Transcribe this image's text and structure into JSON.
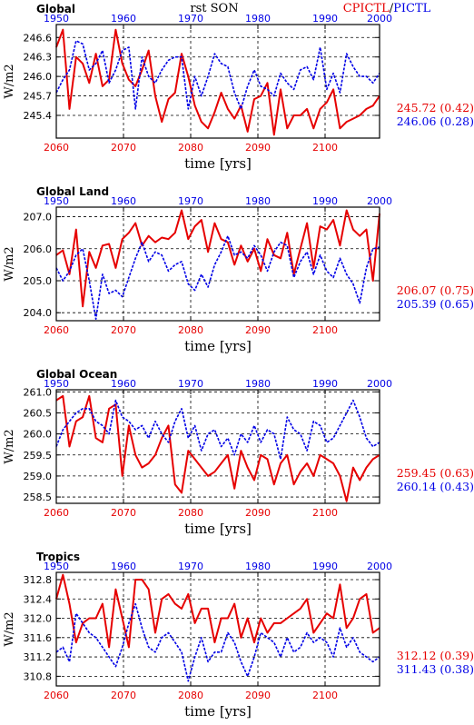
{
  "figure": {
    "center_title": "rst SON",
    "legend_red": "CPICTL",
    "legend_sep": "/",
    "legend_blue": "PICTL",
    "colors": {
      "red": "#e60000",
      "blue": "#0000e6",
      "grid": "#000000"
    }
  },
  "chart_data": [
    {
      "type": "line",
      "title": "Global",
      "ylabel": "W/m2",
      "xlabel": "time [yrs]",
      "x_bottom_ticks": [
        "2060",
        "2070",
        "2080",
        "2090",
        "2100"
      ],
      "x_top_ticks": [
        "1950",
        "1960",
        "1970",
        "1980",
        "1990",
        "2000"
      ],
      "xlim": [
        2060,
        2109
      ],
      "ylim": [
        245.05,
        246.8
      ],
      "y_ticks": [
        "246.6",
        "246.3",
        "246.0",
        "245.7",
        "245.4"
      ],
      "y_tick_values": [
        246.6,
        246.3,
        246.0,
        245.7,
        245.4
      ],
      "stat_red": "245.72 (0.42)",
      "stat_blue": "246.06 (0.28)",
      "series": [
        {
          "name": "CPICTL",
          "color": "#e60000",
          "values": [
            246.45,
            246.72,
            245.5,
            246.3,
            246.2,
            245.9,
            246.35,
            245.85,
            245.95,
            246.72,
            246.2,
            245.95,
            245.85,
            246.1,
            246.4,
            245.7,
            245.3,
            245.65,
            245.75,
            246.35,
            246.0,
            245.55,
            245.3,
            245.2,
            245.45,
            245.75,
            245.5,
            245.35,
            245.55,
            245.15,
            245.65,
            245.7,
            245.9,
            245.1,
            245.8,
            245.2,
            245.4,
            245.4,
            245.5,
            245.2,
            245.5,
            245.6,
            245.8,
            245.2,
            245.3,
            245.35,
            245.4,
            245.5,
            245.55,
            245.7
          ]
        },
        {
          "name": "PICTL",
          "color": "#0000e6",
          "values": [
            245.75,
            245.95,
            246.1,
            246.55,
            246.5,
            246.1,
            246.2,
            246.4,
            245.9,
            246.1,
            246.4,
            246.45,
            245.5,
            246.3,
            246.0,
            245.9,
            246.1,
            246.25,
            246.3,
            246.3,
            245.5,
            246.0,
            245.7,
            246.0,
            246.35,
            246.2,
            246.15,
            245.75,
            245.5,
            245.85,
            246.1,
            245.85,
            245.8,
            245.7,
            246.05,
            245.9,
            245.8,
            246.1,
            246.15,
            245.95,
            246.45,
            245.8,
            246.05,
            245.75,
            246.35,
            246.15,
            246.0,
            246.0,
            245.9,
            246.05
          ]
        }
      ]
    },
    {
      "type": "line",
      "title": "Global Land",
      "ylabel": "W/m2",
      "xlabel": "time [yrs]",
      "x_bottom_ticks": [
        "2060",
        "2070",
        "2080",
        "2090",
        "2100"
      ],
      "x_top_ticks": [
        "1950",
        "1960",
        "1970",
        "1980",
        "1990",
        "2000"
      ],
      "xlim": [
        2060,
        2109
      ],
      "ylim": [
        203.75,
        207.3
      ],
      "y_ticks": [
        "207.0",
        "206.0",
        "205.0",
        "204.0"
      ],
      "y_tick_values": [
        207.0,
        206.0,
        205.0,
        204.0
      ],
      "stat_red": "206.07 (0.75)",
      "stat_blue": "205.39 (0.65)",
      "series": [
        {
          "name": "CPICTL",
          "color": "#e60000",
          "values": [
            205.8,
            205.95,
            205.2,
            206.6,
            204.2,
            205.9,
            205.4,
            206.1,
            206.15,
            205.4,
            206.3,
            206.5,
            206.8,
            206.1,
            206.4,
            206.2,
            206.35,
            206.3,
            206.5,
            207.2,
            206.3,
            206.7,
            206.9,
            205.9,
            206.8,
            206.3,
            206.2,
            205.5,
            206.1,
            205.6,
            206.0,
            205.3,
            206.3,
            205.8,
            205.7,
            206.5,
            205.2,
            206.0,
            206.8,
            205.4,
            206.7,
            206.6,
            206.9,
            206.1,
            207.2,
            206.6,
            206.4,
            206.6,
            205.0,
            207.1
          ]
        },
        {
          "name": "PICTL",
          "color": "#0000e6",
          "values": [
            205.4,
            205.0,
            205.3,
            205.8,
            206.0,
            205.0,
            203.8,
            205.2,
            204.6,
            204.7,
            204.5,
            205.1,
            205.7,
            206.2,
            205.6,
            205.9,
            205.8,
            205.3,
            205.5,
            205.6,
            204.9,
            204.7,
            205.2,
            204.8,
            205.5,
            205.9,
            206.4,
            205.8,
            205.9,
            205.7,
            206.1,
            205.8,
            205.3,
            205.9,
            206.2,
            206.1,
            205.1,
            205.6,
            205.9,
            205.2,
            205.8,
            205.3,
            205.1,
            205.7,
            205.2,
            204.9,
            204.3,
            205.4,
            206.0,
            206.05
          ]
        }
      ]
    },
    {
      "type": "line",
      "title": "Global Ocean",
      "ylabel": "W/m2",
      "xlabel": "time [yrs]",
      "x_bottom_ticks": [
        "2060",
        "2070",
        "2080",
        "2090",
        "2100"
      ],
      "x_top_ticks": [
        "1950",
        "1960",
        "1970",
        "1980",
        "1990",
        "2000"
      ],
      "xlim": [
        2060,
        2109
      ],
      "ylim": [
        258.35,
        261.05
      ],
      "y_ticks": [
        "261.0",
        "260.5",
        "260.0",
        "259.5",
        "259.0",
        "258.5"
      ],
      "y_tick_values": [
        261.0,
        260.5,
        260.0,
        259.5,
        259.0,
        258.5
      ],
      "stat_red": "259.45 (0.63)",
      "stat_blue": "260.14 (0.43)",
      "series": [
        {
          "name": "CPICTL",
          "color": "#e60000",
          "values": [
            260.8,
            260.9,
            259.7,
            260.3,
            260.4,
            260.9,
            259.9,
            259.8,
            260.6,
            260.7,
            259.0,
            260.2,
            259.5,
            259.2,
            259.3,
            259.5,
            259.9,
            260.2,
            258.8,
            258.6,
            259.6,
            259.4,
            259.2,
            259.0,
            259.1,
            259.3,
            259.5,
            258.7,
            259.6,
            259.2,
            258.9,
            259.5,
            259.4,
            258.8,
            259.3,
            259.5,
            258.8,
            259.1,
            259.3,
            259.0,
            259.5,
            259.4,
            259.3,
            259.0,
            258.4,
            259.2,
            258.9,
            259.2,
            259.4,
            259.5
          ]
        },
        {
          "name": "PICTL",
          "color": "#0000e6",
          "values": [
            259.7,
            260.1,
            260.3,
            260.5,
            260.6,
            260.6,
            260.3,
            260.2,
            260.0,
            260.8,
            260.4,
            260.3,
            260.1,
            260.2,
            259.9,
            260.3,
            260.0,
            259.8,
            260.3,
            260.6,
            259.9,
            260.2,
            259.6,
            260.0,
            260.1,
            259.7,
            259.9,
            259.5,
            260.0,
            259.8,
            260.2,
            259.8,
            260.1,
            260.0,
            259.4,
            260.4,
            260.1,
            260.0,
            259.6,
            260.3,
            260.2,
            259.8,
            259.9,
            260.2,
            260.5,
            260.8,
            260.4,
            259.9,
            259.7,
            259.8
          ]
        }
      ]
    },
    {
      "type": "line",
      "title": "Tropics",
      "ylabel": "W/m2",
      "xlabel": "time [yrs]",
      "x_bottom_ticks": [
        "2060",
        "2070",
        "2080",
        "2090",
        "2100"
      ],
      "x_top_ticks": [
        "1950",
        "1960",
        "1970",
        "1980",
        "1990",
        "2000"
      ],
      "xlim": [
        2060,
        2109
      ],
      "ylim": [
        310.6,
        312.95
      ],
      "y_ticks": [
        "312.8",
        "312.4",
        "312.0",
        "311.6",
        "311.2",
        "310.8"
      ],
      "y_tick_values": [
        312.8,
        312.4,
        312.0,
        311.6,
        311.2,
        310.8
      ],
      "stat_red": "312.12 (0.39)",
      "stat_blue": "311.43 (0.38)",
      "series": [
        {
          "name": "CPICTL",
          "color": "#e60000",
          "values": [
            312.4,
            312.9,
            312.3,
            311.5,
            311.9,
            312.0,
            312.0,
            312.3,
            311.4,
            312.6,
            312.0,
            311.4,
            312.8,
            312.8,
            312.6,
            311.7,
            312.4,
            312.5,
            312.3,
            312.2,
            312.5,
            311.9,
            312.2,
            312.2,
            311.5,
            312.0,
            312.0,
            312.3,
            311.6,
            312.0,
            311.5,
            312.0,
            311.7,
            311.9,
            311.9,
            312.0,
            312.1,
            312.2,
            312.4,
            311.7,
            311.9,
            312.1,
            312.0,
            312.7,
            311.8,
            312.0,
            312.4,
            312.5,
            311.7,
            311.8
          ]
        },
        {
          "name": "PICTL",
          "color": "#0000e6",
          "values": [
            311.3,
            311.4,
            311.1,
            312.1,
            311.9,
            311.7,
            311.6,
            311.4,
            311.2,
            311.0,
            311.4,
            311.9,
            312.3,
            311.8,
            311.4,
            311.3,
            311.6,
            311.7,
            311.5,
            311.3,
            310.7,
            311.2,
            311.6,
            311.1,
            311.3,
            311.3,
            311.7,
            311.5,
            311.1,
            310.8,
            311.2,
            311.7,
            311.6,
            311.5,
            311.2,
            311.6,
            311.3,
            311.4,
            311.7,
            311.5,
            311.6,
            311.5,
            311.2,
            311.8,
            311.4,
            311.6,
            311.3,
            311.2,
            311.1,
            311.2
          ]
        }
      ]
    }
  ]
}
